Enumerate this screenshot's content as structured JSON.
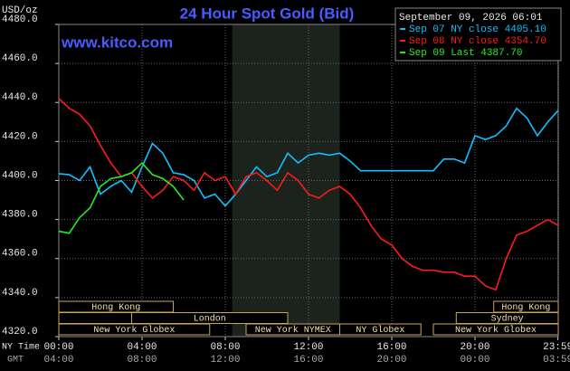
{
  "chart_data": {
    "type": "line",
    "title": "24 Hour Spot Gold (Bid)",
    "y_label": "USD/oz",
    "website": "www.kitco.com",
    "timestamp": "September 09, 2026 06:01",
    "x_label": "NY Time",
    "x2_label": "GMT",
    "x": [
      0,
      0.5,
      1,
      1.5,
      2,
      2.5,
      3,
      3.5,
      4,
      4.5,
      5,
      5.5,
      6,
      6.5,
      7,
      7.5,
      8,
      8.5,
      9,
      9.5,
      10,
      10.5,
      11,
      11.5,
      12,
      12.5,
      13,
      13.5,
      14,
      14.5,
      15,
      15.5,
      16,
      16.5,
      17,
      17.5,
      18,
      18.5,
      19,
      19.5,
      20,
      20.5,
      21,
      21.5,
      22,
      22.5,
      23,
      23.5,
      24
    ],
    "xlim": [
      0,
      24
    ],
    "xticks": [
      {
        "value": 0,
        "label": "00:00"
      },
      {
        "value": 4,
        "label": "04:00"
      },
      {
        "value": 8,
        "label": "08:00"
      },
      {
        "value": 12,
        "label": "12:00"
      },
      {
        "value": 16,
        "label": "16:00"
      },
      {
        "value": 20,
        "label": "20:00"
      },
      {
        "value": 23.983,
        "label": "23:59"
      }
    ],
    "x2_tick_labels": [
      "04:00",
      "08:00",
      "12:00",
      "16:00",
      "20:00",
      "00:00",
      "03:59"
    ],
    "ylim": [
      4320,
      4480
    ],
    "yticks": [
      {
        "value": 4320,
        "label": "4320.0"
      },
      {
        "value": 4340,
        "label": "4340.0"
      },
      {
        "value": 4360,
        "label": "4360.0"
      },
      {
        "value": 4380,
        "label": "4380.0"
      },
      {
        "value": 4400,
        "label": "4400.0"
      },
      {
        "value": 4420,
        "label": "4420.0"
      },
      {
        "value": 4440,
        "label": "4440.0"
      },
      {
        "value": 4460,
        "label": "4460.0"
      },
      {
        "value": 4480,
        "label": "4480.0"
      }
    ],
    "grid": true,
    "shaded_range": [
      8.33,
      13.5
    ],
    "series": [
      {
        "name": "Sep 07 NY close",
        "color": "#10c0ff",
        "last": {
          "value": 4405.1,
          "label": "4405.10"
        },
        "values": [
          4403.5,
          4403,
          4400,
          4407,
          4393,
          4397,
          4400,
          4394,
          4407,
          4419,
          4414,
          4404,
          4403,
          4400,
          4391,
          4393,
          4387,
          4393,
          4400,
          4407,
          4402,
          4404,
          4414,
          4409,
          4413,
          4414,
          4413,
          4414,
          4410,
          4405,
          4405,
          4405,
          4405,
          4405,
          4405,
          4405,
          4405,
          4411,
          4411,
          4409,
          4423,
          4421,
          4423,
          4428,
          4437,
          4432,
          4423,
          4430,
          4436
        ]
      },
      {
        "name": "Sep 08 NY close",
        "color": "#ff1a1a",
        "last": {
          "value": 4354.7,
          "label": "4354.70"
        },
        "values": [
          4442,
          4437,
          4434,
          4428,
          4418,
          4409,
          4402,
          4404,
          4397,
          4391,
          4395,
          4402,
          4400,
          4395,
          4404,
          4400,
          4402,
          4393,
          4402,
          4404,
          4400,
          4395,
          4404,
          4400,
          4393,
          4391,
          4395,
          4397,
          4393,
          4386,
          4377,
          4370,
          4367,
          4360,
          4356,
          4354,
          4354,
          4353,
          4353,
          4351,
          4351,
          4346,
          4344,
          4360,
          4372,
          4374,
          4377,
          4380,
          4377
        ]
      },
      {
        "name": "Sep 09 Last",
        "color": "#22ee22",
        "last": {
          "value": 4387.7,
          "label": "4387.70"
        },
        "values": [
          4374,
          4373,
          4381,
          4386,
          4397,
          4401,
          4402,
          4404,
          4409,
          4403,
          4401,
          4397,
          4390,
          null,
          null,
          null,
          null,
          null,
          null,
          null,
          null,
          null,
          null,
          null,
          null,
          null,
          null,
          null,
          null,
          null,
          null,
          null,
          null,
          null,
          null,
          null,
          null,
          null,
          null,
          null,
          null,
          null,
          null,
          null,
          null,
          null,
          null,
          null,
          null
        ]
      }
    ],
    "sessions": [
      {
        "name": "Hong Kong",
        "start": 0,
        "end": 5.5,
        "row": 0
      },
      {
        "name": null,
        "start": 0,
        "end": 3.5,
        "row": 1
      },
      {
        "name": "London",
        "start": 3.5,
        "end": 11,
        "row": 1
      },
      {
        "name": "New York Globex",
        "start": 0,
        "end": 7.25,
        "row": 2
      },
      {
        "name": "New York NYMEX",
        "start": 9,
        "end": 13.5,
        "row": 2
      },
      {
        "name": "NY Globex",
        "start": 13.5,
        "end": 17.4,
        "row": 2
      },
      {
        "name": "New York Globex",
        "start": 18,
        "end": 24,
        "row": 2
      },
      {
        "name": "Sydney",
        "start": 19.1,
        "end": 24,
        "row": 1
      },
      {
        "name": "Hong Kong",
        "start": 20.9,
        "end": 24,
        "row": 0
      }
    ]
  }
}
